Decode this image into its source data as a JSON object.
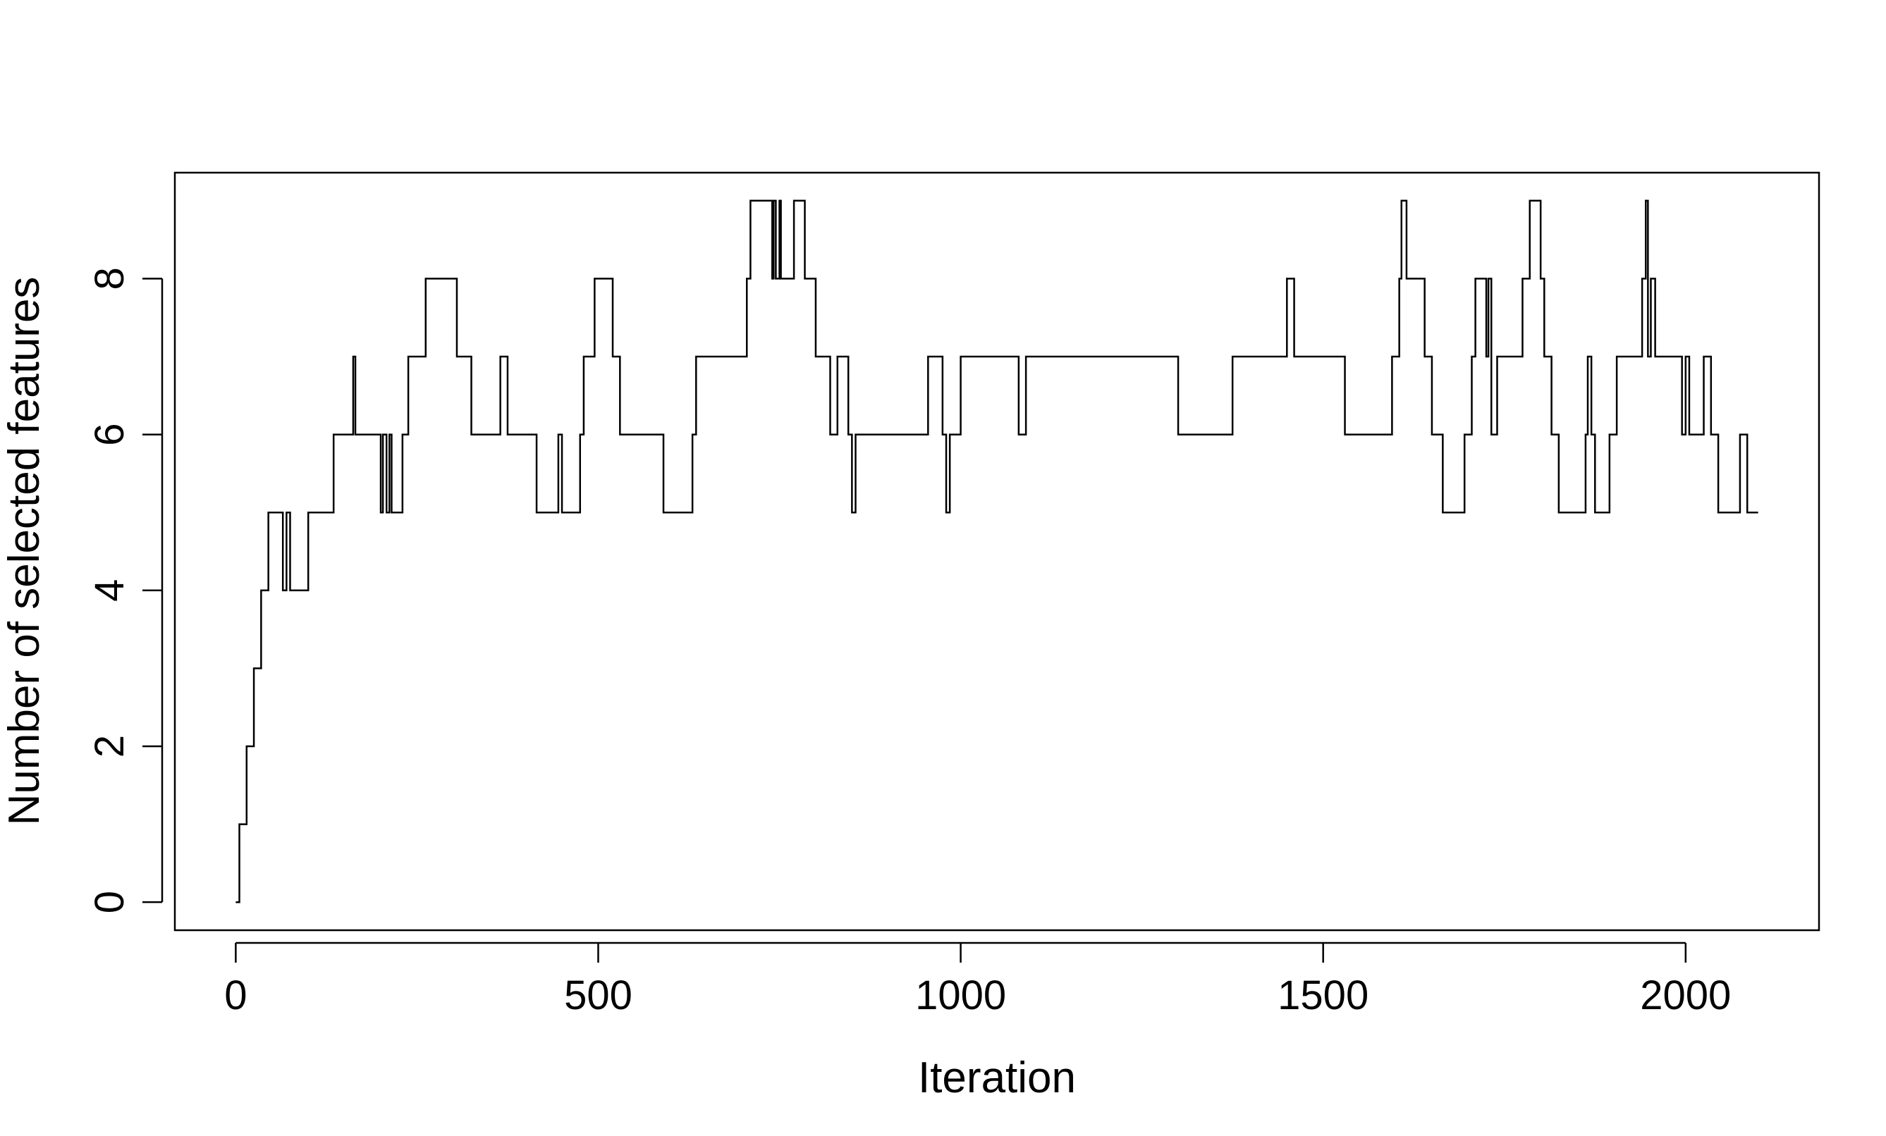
{
  "chart_data": {
    "type": "line",
    "title": "",
    "xlabel": "Iteration",
    "ylabel": "Number of selected features",
    "xlim": [
      -84,
      2184
    ],
    "ylim": [
      -0.36,
      9.36
    ],
    "xticks": [
      0,
      500,
      1000,
      1500,
      2000
    ],
    "yticks": [
      0,
      2,
      4,
      6,
      8
    ],
    "grid": false,
    "legend": "none",
    "line_color": "#000000",
    "step": true,
    "series": [
      {
        "x": [
          0,
          5,
          15,
          25,
          35,
          45,
          55,
          65,
          70,
          75,
          80,
          100,
          135,
          160,
          162,
          165,
          200,
          203,
          208,
          212,
          215,
          220,
          230,
          238,
          248,
          262,
          305,
          325,
          360,
          365,
          375,
          415,
          440,
          445,
          450,
          460,
          475,
          480,
          495,
          505,
          520,
          530,
          540,
          590,
          630,
          635,
          640,
          705,
          710,
          740,
          742,
          745,
          750,
          752,
          760,
          770,
          785,
          800,
          820,
          825,
          830,
          845,
          850,
          855,
          860,
          955,
          975,
          980,
          985,
          1000,
          1010,
          1050,
          1080,
          1090,
          1100,
          1300,
          1370,
          1375,
          1380,
          1450,
          1460,
          1530,
          1585,
          1595,
          1605,
          1608,
          1615,
          1640,
          1650,
          1665,
          1695,
          1705,
          1710,
          1725,
          1728,
          1732,
          1735,
          1740,
          1775,
          1785,
          1800,
          1805,
          1815,
          1825,
          1835,
          1850,
          1862,
          1865,
          1870,
          1875,
          1895,
          1905,
          1915,
          1940,
          1945,
          1948,
          1952,
          1958,
          1975,
          1995,
          2000,
          2005,
          2010,
          2025,
          2035,
          2045,
          2075,
          2085,
          2100
        ],
        "y": [
          0,
          1,
          2,
          3,
          4,
          5,
          5,
          4,
          5,
          4,
          4,
          5,
          6,
          6,
          7,
          6,
          5,
          6,
          5,
          6,
          5,
          5,
          6,
          7,
          7,
          8,
          7,
          6,
          6,
          7,
          6,
          5,
          5,
          6,
          5,
          5,
          6,
          7,
          8,
          8,
          7,
          6,
          6,
          5,
          6,
          7,
          7,
          8,
          9,
          8,
          9,
          8,
          9,
          8,
          8,
          9,
          8,
          7,
          6,
          6,
          7,
          6,
          5,
          6,
          6,
          7,
          6,
          5,
          6,
          7,
          7,
          7,
          6,
          7,
          7,
          6,
          6,
          7,
          7,
          8,
          7,
          6,
          6,
          7,
          8,
          9,
          8,
          7,
          6,
          5,
          6,
          7,
          8,
          7,
          8,
          6,
          6,
          7,
          8,
          9,
          8,
          7,
          6,
          5,
          5,
          5,
          6,
          7,
          6,
          5,
          6,
          7,
          7,
          8,
          9,
          7,
          8,
          7,
          7,
          6,
          7,
          6,
          6,
          7,
          6,
          5,
          6,
          5,
          5
        ]
      }
    ]
  }
}
